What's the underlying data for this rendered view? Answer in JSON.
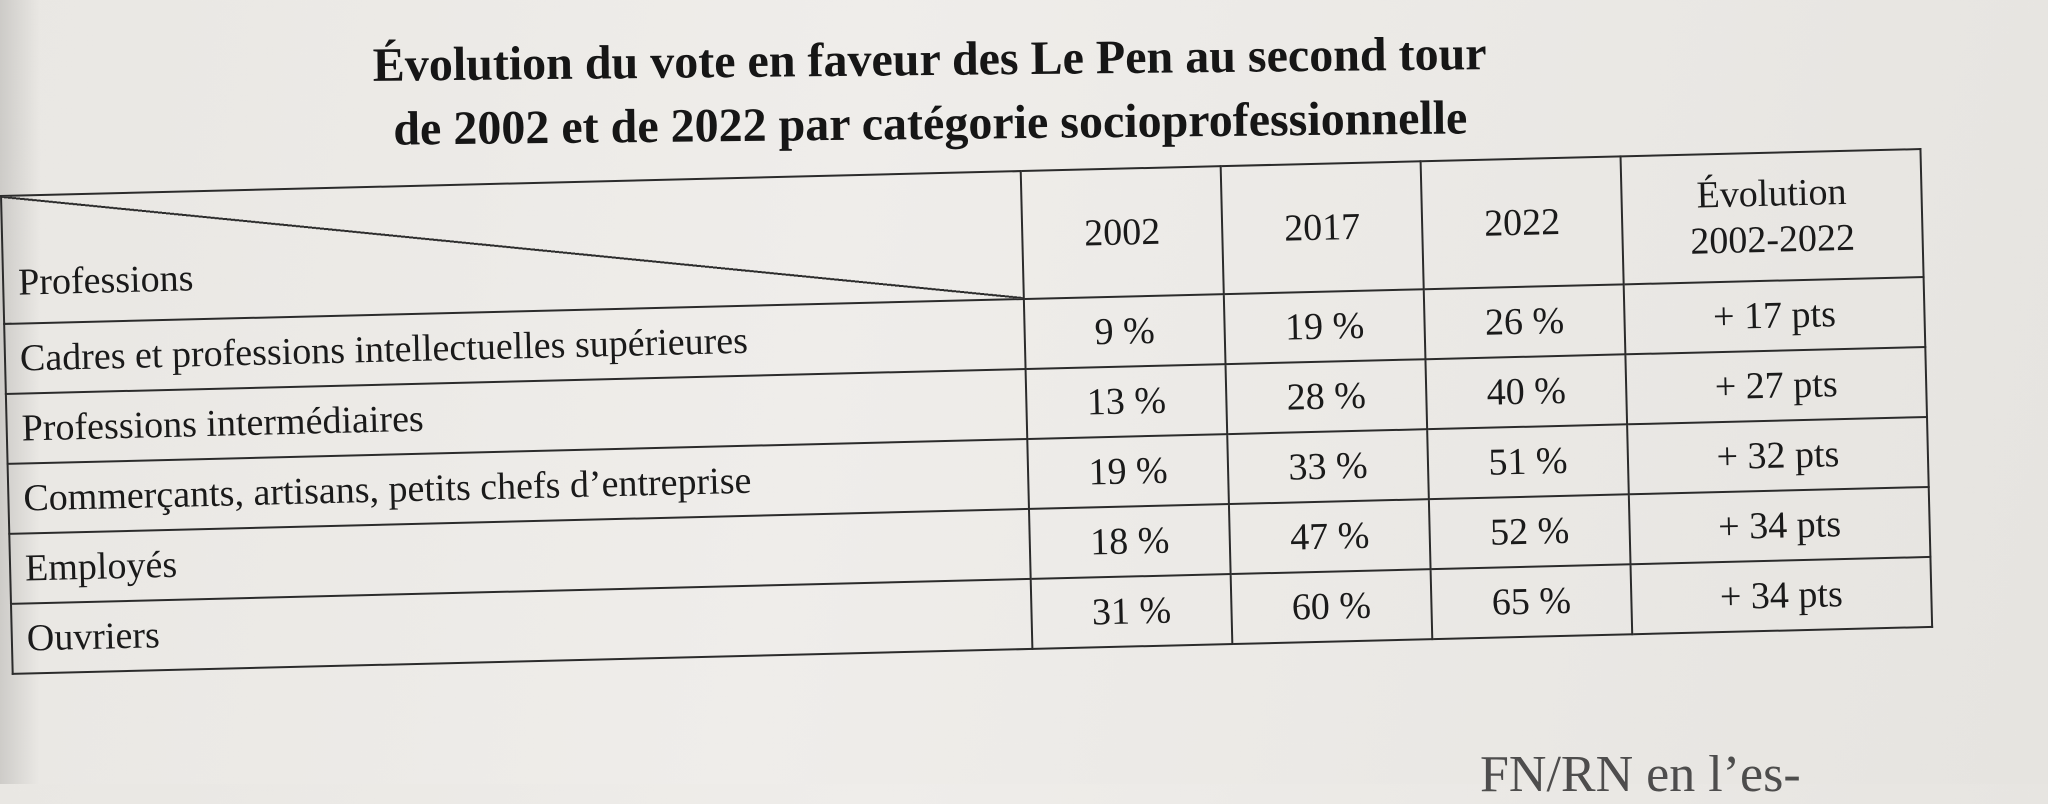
{
  "title": {
    "line1": "Évolution du vote en faveur des Le Pen au second tour",
    "line2": "de 2002 et de 2022 par catégorie socioprofessionnelle"
  },
  "table": {
    "header": {
      "professions": "Professions",
      "y2002": "2002",
      "y2017": "2017",
      "y2022": "2022",
      "evolution_line1": "Évolution",
      "evolution_line2": "2002-2022"
    },
    "rows": [
      {
        "profession": "Cadres et professions intellectuelles supérieures",
        "y2002": "9 %",
        "y2017": "19 %",
        "y2022": "26 %",
        "evolution": "+ 17 pts"
      },
      {
        "profession": "Professions intermédiaires",
        "y2002": "13 %",
        "y2017": "28 %",
        "y2022": "40 %",
        "evolution": "+ 27 pts"
      },
      {
        "profession": "Commerçants, artisans, petits chefs d’entreprise",
        "y2002": "19 %",
        "y2017": "33 %",
        "y2022": "51 %",
        "evolution": "+ 32 pts"
      },
      {
        "profession": "Employés",
        "y2002": "18 %",
        "y2017": "47 %",
        "y2022": "52 %",
        "evolution": "+ 34 pts"
      },
      {
        "profession": "Ouvriers",
        "y2002": "31 %",
        "y2017": "60 %",
        "y2022": "65 %",
        "evolution": "+ 34 pts"
      }
    ]
  },
  "bottom_text": "FN/RN en l’es-"
}
